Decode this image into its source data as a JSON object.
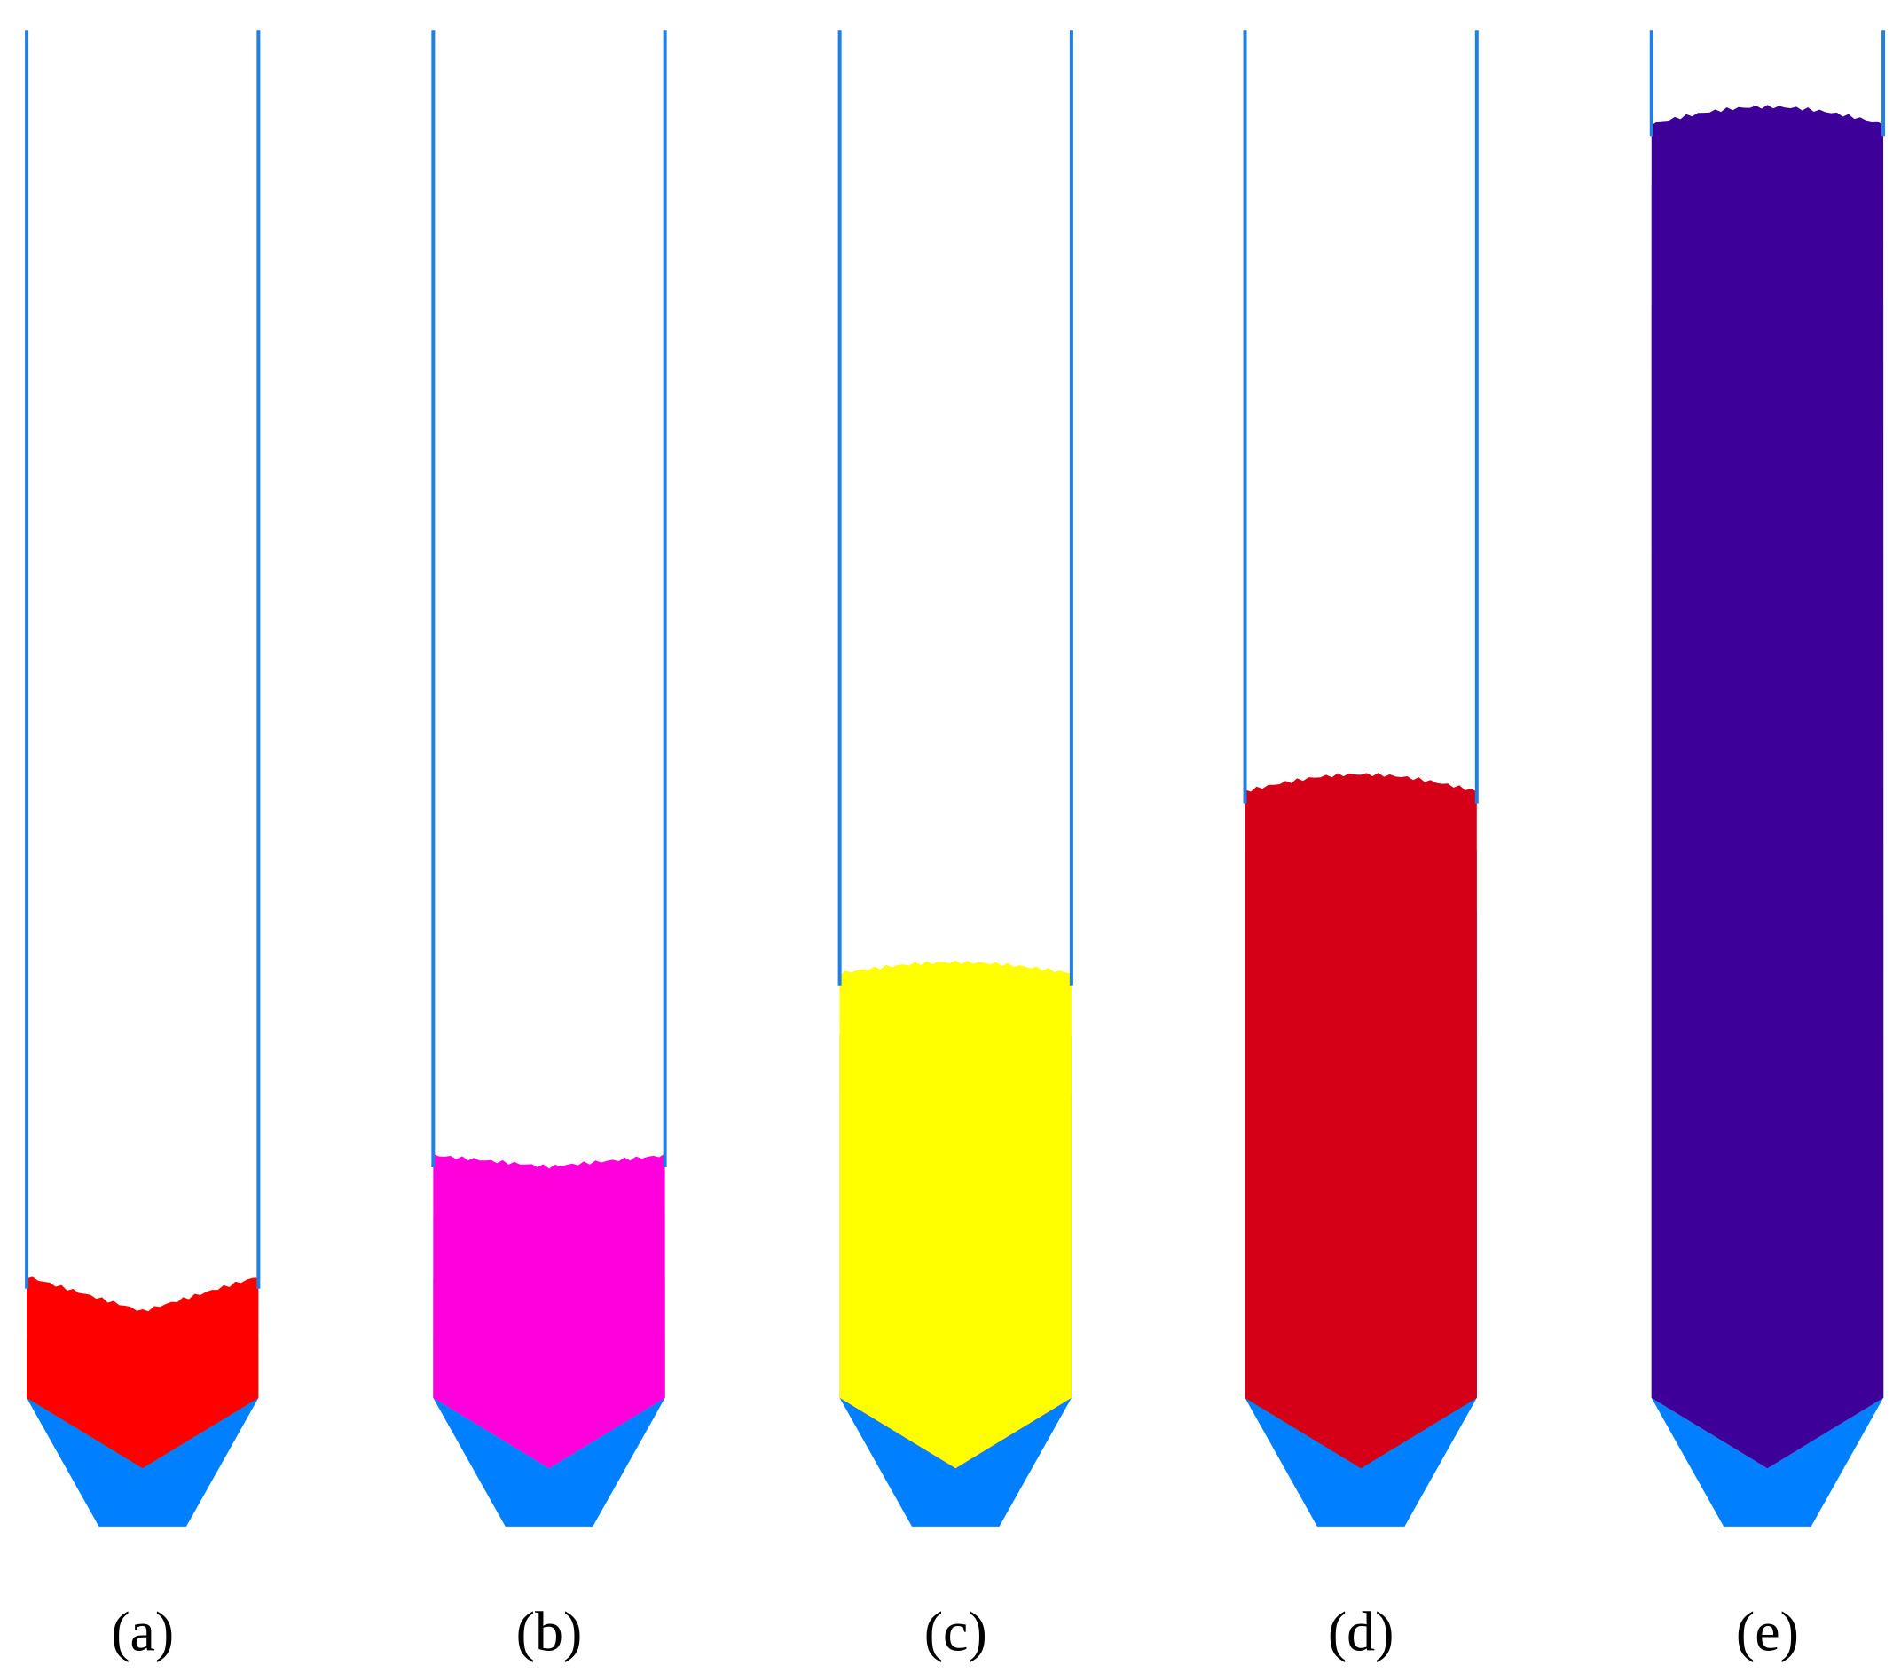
{
  "figure": {
    "wall_color": "#1E7FE6",
    "cone_color": "#0080FF",
    "panels": [
      {
        "id": "a",
        "label": "(a)",
        "layer_colors": [
          "#00FF00",
          "#FF0000"
        ]
      },
      {
        "id": "b",
        "label": "(b)",
        "layer_colors": [
          "#00FF00",
          "#FF0000",
          "#00FFFF",
          "#FF00DD"
        ]
      },
      {
        "id": "c",
        "label": "(c)",
        "layer_colors": [
          "#00FF00",
          "#FF0000",
          "#00FFFF",
          "#FF00DD",
          "#6600FF",
          "#FF4400",
          "#FFFF00"
        ]
      },
      {
        "id": "d",
        "label": "(d)",
        "layer_colors": [
          "#00FF00",
          "#FF0000",
          "#00FFFF",
          "#FF00DD",
          "#6600FF",
          "#FF4400",
          "#FFFF00",
          "#0000FF",
          "#008855",
          "#D50018"
        ]
      },
      {
        "id": "e",
        "label": "(e)",
        "layer_colors": [
          "#00FF00",
          "#FF0000",
          "#00FFFF",
          "#FF00DD",
          "#6600FF",
          "#FF4400",
          "#FFFF00",
          "#0000FF",
          "#008855",
          "#D50018",
          "#CC00FF",
          "#FF8800",
          "#7A2E35",
          "#445E28",
          "#357762",
          "#FFBF00",
          "#6666FF",
          "#000099",
          "#E4CCFF",
          "#AA66FF",
          "#3D0099"
        ]
      }
    ]
  }
}
